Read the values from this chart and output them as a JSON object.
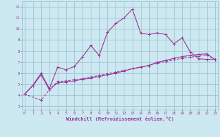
{
  "xlabel": "Windchill (Refroidissement éolien,°C)",
  "bg_color": "#cce8f0",
  "line_color": "#993399",
  "grid_color": "#99bbcc",
  "x_ticks": [
    0,
    1,
    2,
    3,
    4,
    5,
    6,
    7,
    8,
    9,
    10,
    11,
    12,
    13,
    14,
    15,
    16,
    17,
    18,
    19,
    20,
    21,
    22,
    23
  ],
  "y_ticks": [
    3,
    4,
    5,
    6,
    7,
    8,
    9,
    10,
    11,
    12
  ],
  "xlim": [
    -0.3,
    23.3
  ],
  "ylim": [
    2.7,
    12.5
  ],
  "curve1_x": [
    0,
    1,
    2,
    3,
    4,
    5,
    6,
    7,
    8,
    9,
    10,
    11,
    12,
    13,
    14,
    15,
    16,
    17,
    18,
    19,
    20,
    21,
    22,
    23
  ],
  "curve1_y": [
    4.1,
    4.9,
    6.0,
    4.6,
    6.55,
    6.3,
    6.6,
    7.5,
    8.5,
    7.6,
    9.7,
    10.5,
    11.0,
    11.8,
    9.65,
    9.5,
    9.65,
    9.5,
    8.65,
    9.2,
    7.9,
    7.3,
    7.25,
    7.25
  ],
  "curve2_x": [
    0,
    1,
    2,
    3,
    4,
    5,
    6,
    7,
    8,
    9,
    10,
    11,
    12,
    13,
    14,
    15,
    16,
    17,
    18,
    19,
    20,
    21,
    22,
    23
  ],
  "curve2_y": [
    4.1,
    4.85,
    5.85,
    4.5,
    5.15,
    5.2,
    5.3,
    5.45,
    5.55,
    5.7,
    5.85,
    6.0,
    6.2,
    6.4,
    6.55,
    6.7,
    7.0,
    7.15,
    7.35,
    7.5,
    7.6,
    7.7,
    7.75,
    7.2
  ],
  "curve3_x": [
    0,
    2,
    3,
    4,
    5,
    6,
    7,
    8,
    9,
    10,
    11,
    12,
    13,
    14,
    15,
    16,
    17,
    18,
    19,
    20,
    21,
    22,
    23
  ],
  "curve3_y": [
    4.1,
    3.55,
    4.5,
    5.25,
    5.3,
    5.4,
    5.5,
    5.65,
    5.8,
    5.95,
    6.1,
    6.25,
    6.4,
    6.55,
    6.7,
    6.9,
    7.05,
    7.2,
    7.35,
    7.45,
    7.55,
    7.65,
    7.2
  ]
}
